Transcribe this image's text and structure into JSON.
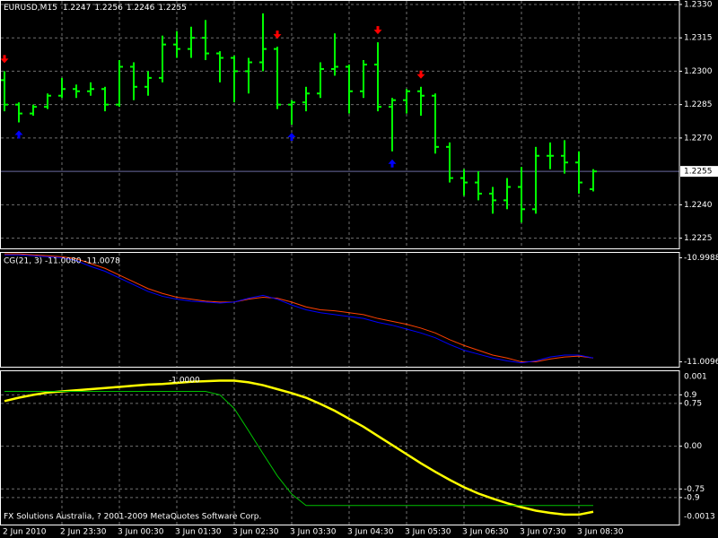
{
  "chart_data": [
    {
      "type": "ohlc",
      "title": "EURUSD,M15",
      "categories": [
        "2 Jun 2010",
        null,
        null,
        null,
        "2 Jun 23:30",
        null,
        null,
        null,
        "3 Jun 00:30",
        null,
        null,
        null,
        "3 Jun 01:30",
        null,
        null,
        null,
        "3 Jun 02:30",
        null,
        null,
        null,
        "3 Jun 03:30",
        null,
        null,
        null,
        "3 Jun 04:30",
        null,
        null,
        null,
        "3 Jun 05:30",
        null,
        null,
        null,
        "3 Jun 06:30",
        null,
        null,
        null,
        "3 Jun 07:30",
        null,
        null,
        null,
        "3 Jun 08:30",
        null
      ],
      "open": [
        1.2296,
        1.2285,
        1.2281,
        1.2284,
        1.2289,
        1.2292,
        1.2291,
        1.2292,
        1.2285,
        1.2302,
        1.2293,
        1.2297,
        1.2312,
        1.231,
        1.2315,
        1.2308,
        1.2306,
        1.23,
        1.2304,
        1.231,
        1.2285,
        1.2286,
        1.229,
        1.2301,
        1.2302,
        1.2291,
        1.2303,
        1.2284,
        1.2287,
        1.2291,
        1.2289,
        1.2266,
        1.2252,
        1.225,
        1.2245,
        1.2242,
        1.2248,
        1.2238,
        1.2262,
        1.2262,
        1.2259,
        1.2247
      ],
      "high": [
        1.23,
        1.2286,
        1.2285,
        1.229,
        1.2297,
        1.2294,
        1.2295,
        1.2293,
        1.2305,
        1.2304,
        1.23,
        1.2316,
        1.2318,
        1.232,
        1.2323,
        1.2309,
        1.2307,
        1.2306,
        1.2326,
        1.2311,
        1.2287,
        1.2293,
        1.2304,
        1.2317,
        1.2303,
        1.2305,
        1.2313,
        1.2288,
        1.2292,
        1.2293,
        1.229,
        1.2268,
        1.2256,
        1.2255,
        1.2248,
        1.2252,
        1.2257,
        1.2266,
        1.2268,
        1.2269,
        1.2264,
        1.2256
      ],
      "low": [
        1.2282,
        1.2277,
        1.228,
        1.2283,
        1.2288,
        1.2288,
        1.2289,
        1.2282,
        1.2284,
        1.2287,
        1.2289,
        1.2295,
        1.2306,
        1.2306,
        1.2305,
        1.2295,
        1.2286,
        1.229,
        1.23,
        1.2283,
        1.2276,
        1.2282,
        1.2288,
        1.2298,
        1.2281,
        1.2288,
        1.2282,
        1.2264,
        1.2281,
        1.228,
        1.2263,
        1.225,
        1.2244,
        1.2242,
        1.2236,
        1.2238,
        1.2232,
        1.2236,
        1.2256,
        1.2254,
        1.2245,
        1.2246
      ],
      "close": [
        1.2285,
        1.2281,
        1.2284,
        1.2289,
        1.2292,
        1.2291,
        1.2292,
        1.2285,
        1.2302,
        1.2293,
        1.2297,
        1.2312,
        1.231,
        1.2315,
        1.2308,
        1.2306,
        1.23,
        1.2304,
        1.231,
        1.2285,
        1.2286,
        1.229,
        1.2301,
        1.2302,
        1.2291,
        1.2303,
        1.2284,
        1.2287,
        1.2291,
        1.2289,
        1.2266,
        1.2252,
        1.225,
        1.2245,
        1.2242,
        1.2248,
        1.2238,
        1.2262,
        1.2262,
        1.2259,
        1.225,
        1.2255
      ],
      "color": "#00ff00",
      "fractals_up": [
        1,
        20,
        27
      ],
      "up_color": "#0000ff",
      "fractals_down": [
        0,
        19,
        26,
        29
      ],
      "down_color": "#ff0000",
      "current_line_color": "#6a6aa0",
      "ylim": [
        1.222,
        1.2332
      ],
      "yticks": [
        {
          "value": 1.233,
          "label": "1.2330"
        },
        1.2315,
        {
          "value": 1.23,
          "label": "1.2300"
        },
        1.2285,
        {
          "value": 1.227,
          "label": "1.2270"
        },
        {
          "value": 1.224,
          "label": "1.2240"
        },
        1.2225
      ],
      "grid": true
    },
    {
      "type": "line",
      "title": "CG(21, 3) -11.0080 -11.0078",
      "series": [
        {
          "color": "#ff4000",
          "values": [
            -10.9984,
            -10.9984,
            -10.9985,
            -10.9986,
            -10.9987,
            -10.9989,
            -10.9994,
            -10.9999,
            -11.0006,
            -11.0013,
            -11.002,
            -11.0025,
            -11.0029,
            -11.0031,
            -11.0033,
            -11.0034,
            -11.0034,
            -11.0031,
            -11.0029,
            -11.003,
            -11.0034,
            -11.0039,
            -11.0042,
            -11.0043,
            -11.0045,
            -11.0047,
            -11.0051,
            -11.0054,
            -11.0057,
            -11.0061,
            -11.0066,
            -11.0073,
            -11.0079,
            -11.0084,
            -11.0089,
            -11.0092,
            -11.0096,
            -11.0096,
            -11.0093,
            -11.0091,
            -11.009,
            -11.0092
          ]
        },
        {
          "color": "#0000ff",
          "values": [
            -10.9985,
            -10.9985,
            -10.9986,
            -10.9987,
            -10.9988,
            -10.9991,
            -10.9997,
            -11.0002,
            -11.0009,
            -11.0016,
            -11.0023,
            -11.0028,
            -11.0031,
            -11.0033,
            -11.0034,
            -11.0035,
            -11.0034,
            -11.003,
            -11.0027,
            -11.0031,
            -11.0037,
            -11.0042,
            -11.0045,
            -11.0047,
            -11.0049,
            -11.0051,
            -11.0055,
            -11.0058,
            -11.0062,
            -11.0066,
            -11.0071,
            -11.0078,
            -11.0084,
            -11.0088,
            -11.0092,
            -11.0095,
            -11.0097,
            -11.0095,
            -11.0091,
            -11.0089,
            -11.0089,
            -11.0092
          ]
        }
      ],
      "ylim": [
        -11.0102,
        -10.9982
      ],
      "yticks": [
        -10.9988,
        -11.0096
      ]
    },
    {
      "type": "line",
      "title": "-1.0000",
      "series": [
        {
          "color": "#ffff00",
          "values": [
            0.79,
            0.85,
            0.9,
            0.94,
            0.96,
            0.98,
            1.0,
            1.02,
            1.04,
            1.06,
            1.08,
            1.09,
            1.11,
            1.13,
            1.14,
            1.15,
            1.15,
            1.12,
            1.07,
            1.0,
            0.93,
            0.85,
            0.74,
            0.62,
            0.48,
            0.34,
            0.18,
            0.02,
            -0.14,
            -0.3,
            -0.45,
            -0.59,
            -0.72,
            -0.83,
            -0.92,
            -1.0,
            -1.07,
            -1.13,
            -1.17,
            -1.2,
            -1.2,
            -1.15
          ]
        },
        {
          "color": "#00c000",
          "values": [
            0.96,
            0.96,
            0.96,
            0.96,
            0.96,
            0.96,
            0.96,
            0.96,
            0.96,
            0.96,
            0.96,
            0.96,
            0.96,
            0.96,
            0.96,
            0.9,
            0.66,
            0.27,
            -0.13,
            -0.52,
            -0.84,
            -1.04,
            -1.04,
            -1.04,
            -1.04,
            -1.04,
            -1.04,
            -1.04,
            -1.04,
            -1.04,
            -1.04,
            -1.04,
            -1.04,
            -1.04,
            -1.04,
            -1.04,
            -1.04,
            -1.04,
            -1.04,
            -1.04,
            -1.04,
            -1.04
          ]
        }
      ],
      "ylim": [
        -1.39,
        1.33
      ],
      "yticks": [
        0.9,
        0.75,
        {
          "value": 0,
          "label": "0.00"
        },
        -0.75,
        -0.9
      ],
      "scale_labels": [
        "0.001",
        "-0.0013"
      ],
      "footer": "FX Solutions Australia, ? 2001-2009 MetaQuotes Software Corp.",
      "grid": true
    }
  ]
}
